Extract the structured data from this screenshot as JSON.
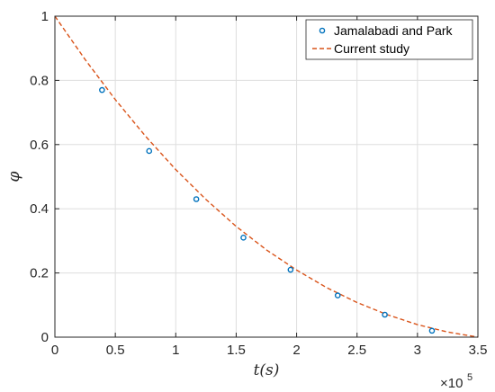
{
  "chart_data": {
    "type": "line",
    "xlabel": "t(s)",
    "ylabel": "φ",
    "x_multiplier": {
      "base": "×10",
      "exponent": "5"
    },
    "xlim": [
      0,
      3.5
    ],
    "ylim": [
      0,
      1
    ],
    "x_ticks": [
      0,
      0.5,
      1,
      1.5,
      2,
      2.5,
      3,
      3.5
    ],
    "x_tick_labels": [
      "0",
      "0.5",
      "1",
      "1.5",
      "2",
      "2.5",
      "3",
      "3.5"
    ],
    "y_ticks": [
      0,
      0.2,
      0.4,
      0.6,
      0.8,
      1
    ],
    "y_tick_labels": [
      "0",
      "0.2",
      "0.4",
      "0.6",
      "0.8",
      "1"
    ],
    "grid": true,
    "legend_position": "top-right",
    "series": [
      {
        "name": "Jamalabadi and Park",
        "style": "markers",
        "marker": "circle",
        "color": "#0072BD",
        "x": [
          0.39,
          0.78,
          1.17,
          1.56,
          1.95,
          2.34,
          2.73,
          3.12
        ],
        "y": [
          0.77,
          0.58,
          0.43,
          0.31,
          0.21,
          0.13,
          0.07,
          0.02
        ]
      },
      {
        "name": "Current study",
        "style": "dashed",
        "color": "#D95319",
        "x": [
          0,
          0.25,
          0.5,
          0.75,
          1.0,
          1.25,
          1.5,
          1.75,
          2.0,
          2.25,
          2.5,
          2.75,
          3.0,
          3.25,
          3.5
        ],
        "y": [
          1.0,
          0.865,
          0.74,
          0.626,
          0.522,
          0.429,
          0.345,
          0.272,
          0.209,
          0.154,
          0.108,
          0.07,
          0.039,
          0.016,
          0.0
        ]
      }
    ]
  }
}
